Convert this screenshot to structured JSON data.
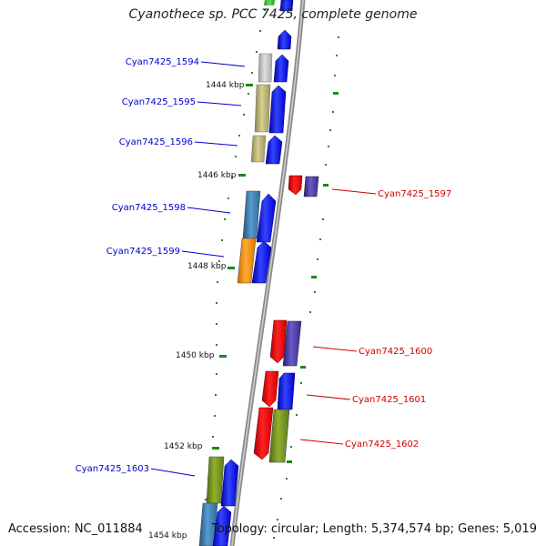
{
  "title": "Cyanothece sp. PCC 7425, complete genome",
  "footer": {
    "accession": "Accession: NC_011884",
    "topology": "Topology: circular; Length: 5,374,574 bp; Genes: 5,019"
  },
  "colors": {
    "backbone": "#888888",
    "tick": "#1a8a1a",
    "label_forward": "#0000cc",
    "label_reverse": "#cc0000",
    "cds_forward": "#0000ff",
    "cds_reverse": "#ff0000"
  },
  "kbp_labels": [
    "1444 kbp",
    "1446 kbp",
    "1448 kbp",
    "1450 kbp",
    "1452 kbp",
    "1454 kbp"
  ],
  "gene_labels": {
    "g1594": "Cyan7425_1594",
    "g1595": "Cyan7425_1595",
    "g1596": "Cyan7425_1596",
    "g1597": "Cyan7425_1597",
    "g1598": "Cyan7425_1598",
    "g1599": "Cyan7425_1599",
    "g1600": "Cyan7425_1600",
    "g1601": "Cyan7425_1601",
    "g1602": "Cyan7425_1602",
    "g1603": "Cyan7425_1603"
  }
}
